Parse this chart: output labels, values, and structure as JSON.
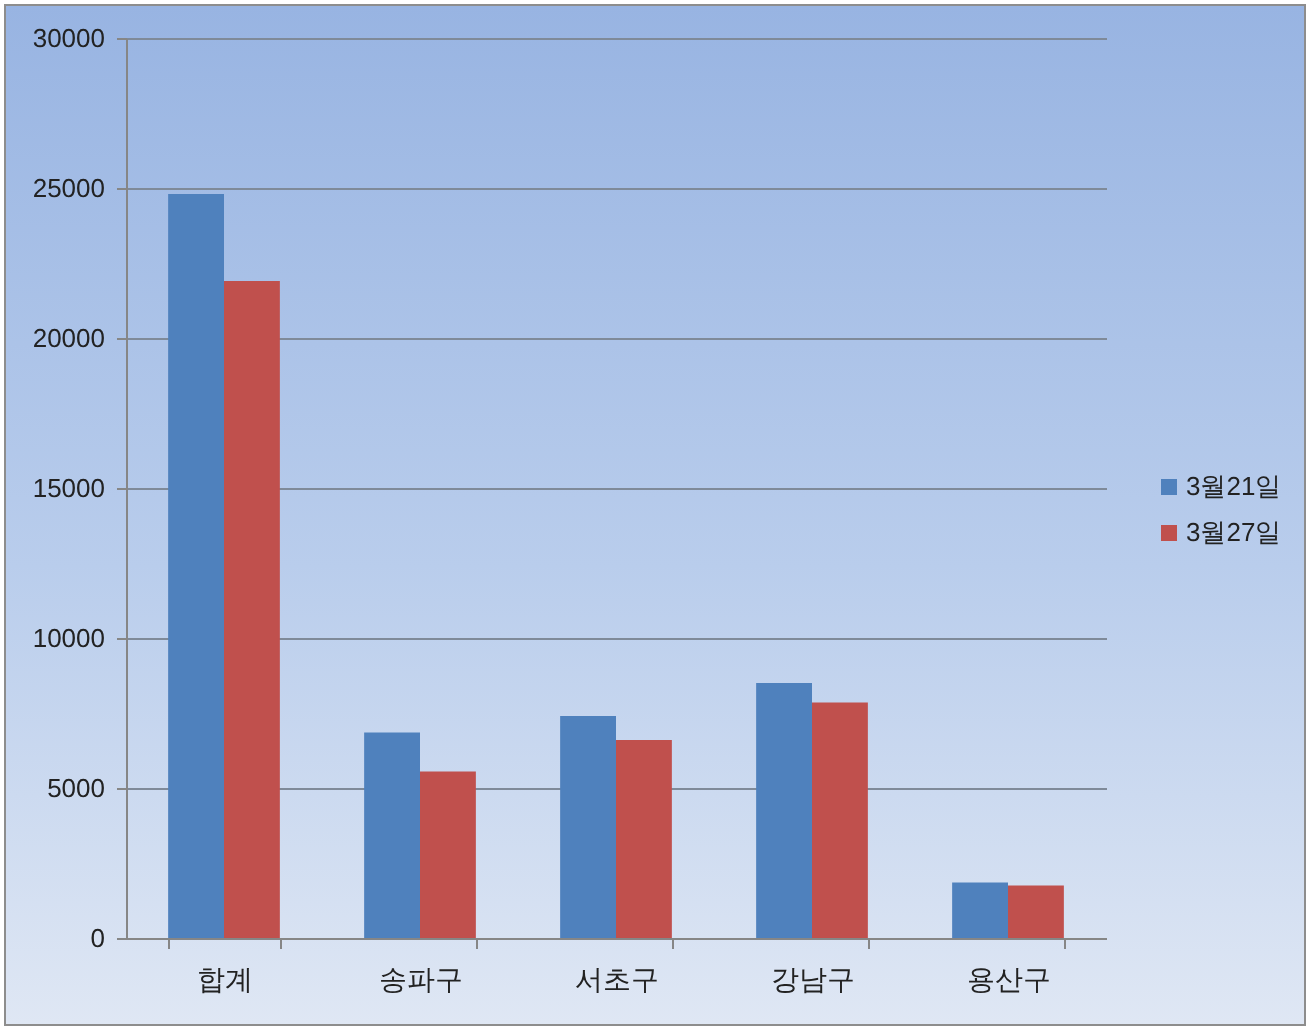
{
  "chart_data": {
    "type": "bar",
    "categories": [
      "합계",
      "송파구",
      "서초구",
      "강남구",
      "용산구"
    ],
    "series": [
      {
        "name": "3월21일",
        "color": "#4f81bd",
        "values": [
          24800,
          6850,
          7400,
          8500,
          1850
        ]
      },
      {
        "name": "3월27일",
        "color": "#c0504d",
        "values": [
          21900,
          5550,
          6600,
          7850,
          1750
        ]
      }
    ],
    "ylim": [
      0,
      30000
    ],
    "yticks": [
      0,
      5000,
      10000,
      15000,
      20000,
      25000,
      30000
    ],
    "grid": "y",
    "legend": "right"
  }
}
